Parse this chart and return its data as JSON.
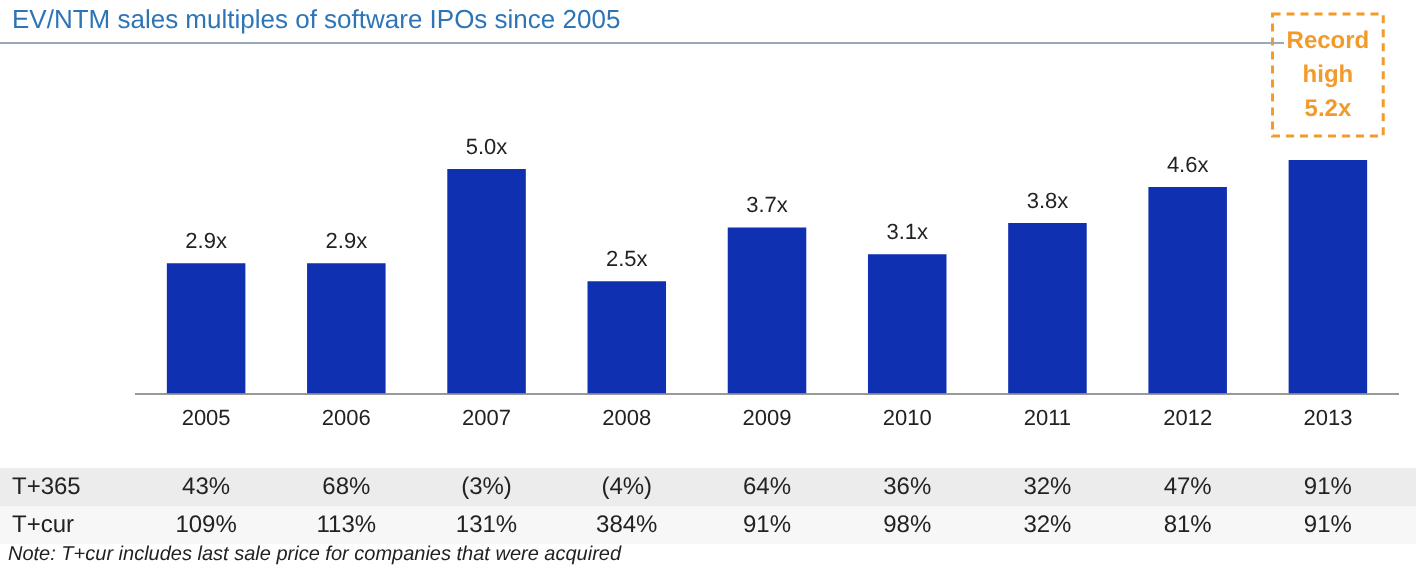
{
  "chart_data": {
    "type": "bar",
    "title": "EV/NTM sales multiples of software IPOs since 2005",
    "categories": [
      "2005",
      "2006",
      "2007",
      "2008",
      "2009",
      "2010",
      "2011",
      "2012",
      "2013"
    ],
    "values": [
      2.9,
      2.9,
      5.0,
      2.5,
      3.7,
      3.1,
      3.8,
      4.6,
      5.2
    ],
    "color": "#0f30b0",
    "value_labels": [
      "2.9x",
      "2.9x",
      "5.0x",
      "2.5x",
      "3.7x",
      "3.1x",
      "3.8x",
      "4.6x",
      null
    ],
    "tick_labels": "x",
    "annotations": [
      {
        "text": "Record\nhigh\n5.2x",
        "x": "2013",
        "y": 5.2
      },
      "T+365",
      "43%",
      "68%",
      "(3%)",
      "(4%)",
      "64%",
      "36%",
      "32%",
      "47%",
      "91%",
      "T+cur",
      "109%",
      "113%",
      "131%",
      "384%",
      "91%",
      "98%",
      "32%",
      "81%",
      "91%",
      "Note: T+cur includes last sale price for companies that were acquired"
    ]
  }
}
